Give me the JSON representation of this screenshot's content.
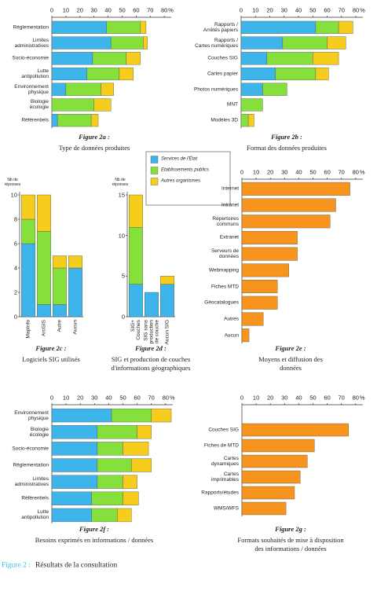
{
  "legend": [
    {
      "name": "Services de l'État",
      "color": "#3db4ea"
    },
    {
      "name": "Etablissements publics",
      "color": "#86e03c"
    },
    {
      "name": "Autres organismes",
      "color": "#f6cd1c"
    }
  ],
  "chart_data": [
    {
      "type": "stacked-bar-h",
      "categories": [
        "Réglementation",
        "Limites\nadministratives",
        "Socio-économie",
        "Lutte\nantipollution",
        "Environnement\nphysique",
        "Biologie\nécologie",
        "Référentiels"
      ],
      "series": [
        {
          "values": [
            39,
            42,
            29,
            25,
            10,
            0,
            4
          ]
        },
        {
          "values": [
            24,
            23,
            24,
            23,
            25,
            30,
            24
          ]
        },
        {
          "values": [
            4,
            3,
            10,
            10,
            9,
            12,
            5
          ]
        }
      ],
      "xlim": [
        0,
        85
      ],
      "xticks": [
        0,
        10,
        20,
        30,
        40,
        50,
        60,
        70,
        80
      ],
      "x_unit": "%",
      "figure_label": "Figure 2a :",
      "caption": "Type de données produites"
    },
    {
      "type": "stacked-bar-h",
      "categories": [
        "Rapports /\nArrêtés papiers",
        "Rapports /\nCartes numériques",
        "Couches SIG",
        "Cartes papier",
        "Photos numériques",
        "MNT",
        "Modèles 3D"
      ],
      "series": [
        {
          "values": [
            52,
            29,
            18,
            24,
            15,
            0,
            0
          ]
        },
        {
          "values": [
            16,
            31,
            32,
            28,
            17,
            15,
            5
          ]
        },
        {
          "values": [
            10,
            13,
            18,
            9,
            0,
            0,
            4
          ]
        }
      ],
      "xlim": [
        0,
        85
      ],
      "xticks": [
        0,
        10,
        20,
        30,
        40,
        50,
        60,
        70,
        80
      ],
      "x_unit": "%",
      "figure_label": "Figure 2b :",
      "caption": "Format des données produites"
    },
    {
      "type": "stacked-bar-v",
      "categories": [
        "MapInfo",
        "ArcGIS",
        "Autre",
        "Aucun"
      ],
      "series": [
        {
          "values": [
            6,
            1,
            1,
            4
          ]
        },
        {
          "values": [
            2,
            6,
            3,
            0
          ]
        },
        {
          "values": [
            2,
            3,
            1,
            1
          ]
        }
      ],
      "ylim": [
        0,
        10
      ],
      "yticks": [
        0,
        2,
        4,
        6,
        8,
        10
      ],
      "y_label": "Nb de\nréponses",
      "figure_label": "Figure 2c :",
      "caption": "Logiciels SIG utilisés"
    },
    {
      "type": "stacked-bar-v",
      "categories": [
        "SIG+\nCouches",
        "SIG sans\nproduction\nde couche",
        "Aucun SIG"
      ],
      "series": [
        {
          "values": [
            4,
            3,
            4
          ]
        },
        {
          "values": [
            7,
            0,
            0
          ]
        },
        {
          "values": [
            4,
            0,
            1
          ]
        }
      ],
      "ylim": [
        0,
        15
      ],
      "yticks": [
        0,
        5,
        10,
        15
      ],
      "y_label": "Nb de\nréponses",
      "figure_label": "Figure 2d :",
      "caption": "SIG et production de couches\nd'informations géographiques"
    },
    {
      "type": "bar-h",
      "categories": [
        "Internet",
        "Intranet",
        "Répertoires\ncommuns",
        "Extranet",
        "Serveurs de\ndonnées",
        "Webmapping",
        "Fiches MTD",
        "Géocatalogues",
        "Autres",
        "Aucun"
      ],
      "values": [
        76,
        66,
        62,
        39,
        39,
        33,
        25,
        25,
        15,
        5
      ],
      "color": "#f7941d",
      "xlim": [
        0,
        85
      ],
      "xticks": [
        0,
        10,
        20,
        30,
        40,
        50,
        60,
        70,
        80
      ],
      "x_unit": "%",
      "figure_label": "Figure 2e :",
      "caption": "Moyens et diffusion des\ndonnées"
    },
    {
      "type": "stacked-bar-h",
      "categories": [
        "Environnement\nphysique",
        "Biologie\nécologie",
        "Socio-économie",
        "Réglementation",
        "Limites\nadministratives",
        "Référentiels",
        "Lutte\nantipollution"
      ],
      "series": [
        {
          "values": [
            42,
            32,
            32,
            32,
            32,
            28,
            28
          ]
        },
        {
          "values": [
            28,
            28,
            18,
            24,
            18,
            22,
            18
          ]
        },
        {
          "values": [
            14,
            10,
            18,
            14,
            10,
            11,
            10
          ]
        }
      ],
      "xlim": [
        0,
        85
      ],
      "xticks": [
        0,
        10,
        20,
        30,
        40,
        50,
        60,
        70,
        80
      ],
      "x_unit": "%",
      "figure_label": "Figure 2f :",
      "caption": "Besoins exprimés en informations / données"
    },
    {
      "type": "bar-h",
      "categories": [
        "Couches SIG",
        "Fiches de MTD",
        "Cartes\ndynamiques",
        "Cartes\nimprimables",
        "Rapports/études",
        "WMS/WFS"
      ],
      "values": [
        75,
        51,
        46,
        41,
        37,
        31
      ],
      "color": "#f7941d",
      "xlim": [
        0,
        85
      ],
      "xticks": [
        0,
        10,
        20,
        30,
        40,
        50,
        60,
        70,
        80
      ],
      "x_unit": "%",
      "figure_label": "Figure 2g :",
      "caption": "Formats souhaités de mise à disposition\ndes informations / données"
    }
  ],
  "footer": {
    "label": "Figure 2 :",
    "text": "Résultats de la consultation"
  }
}
